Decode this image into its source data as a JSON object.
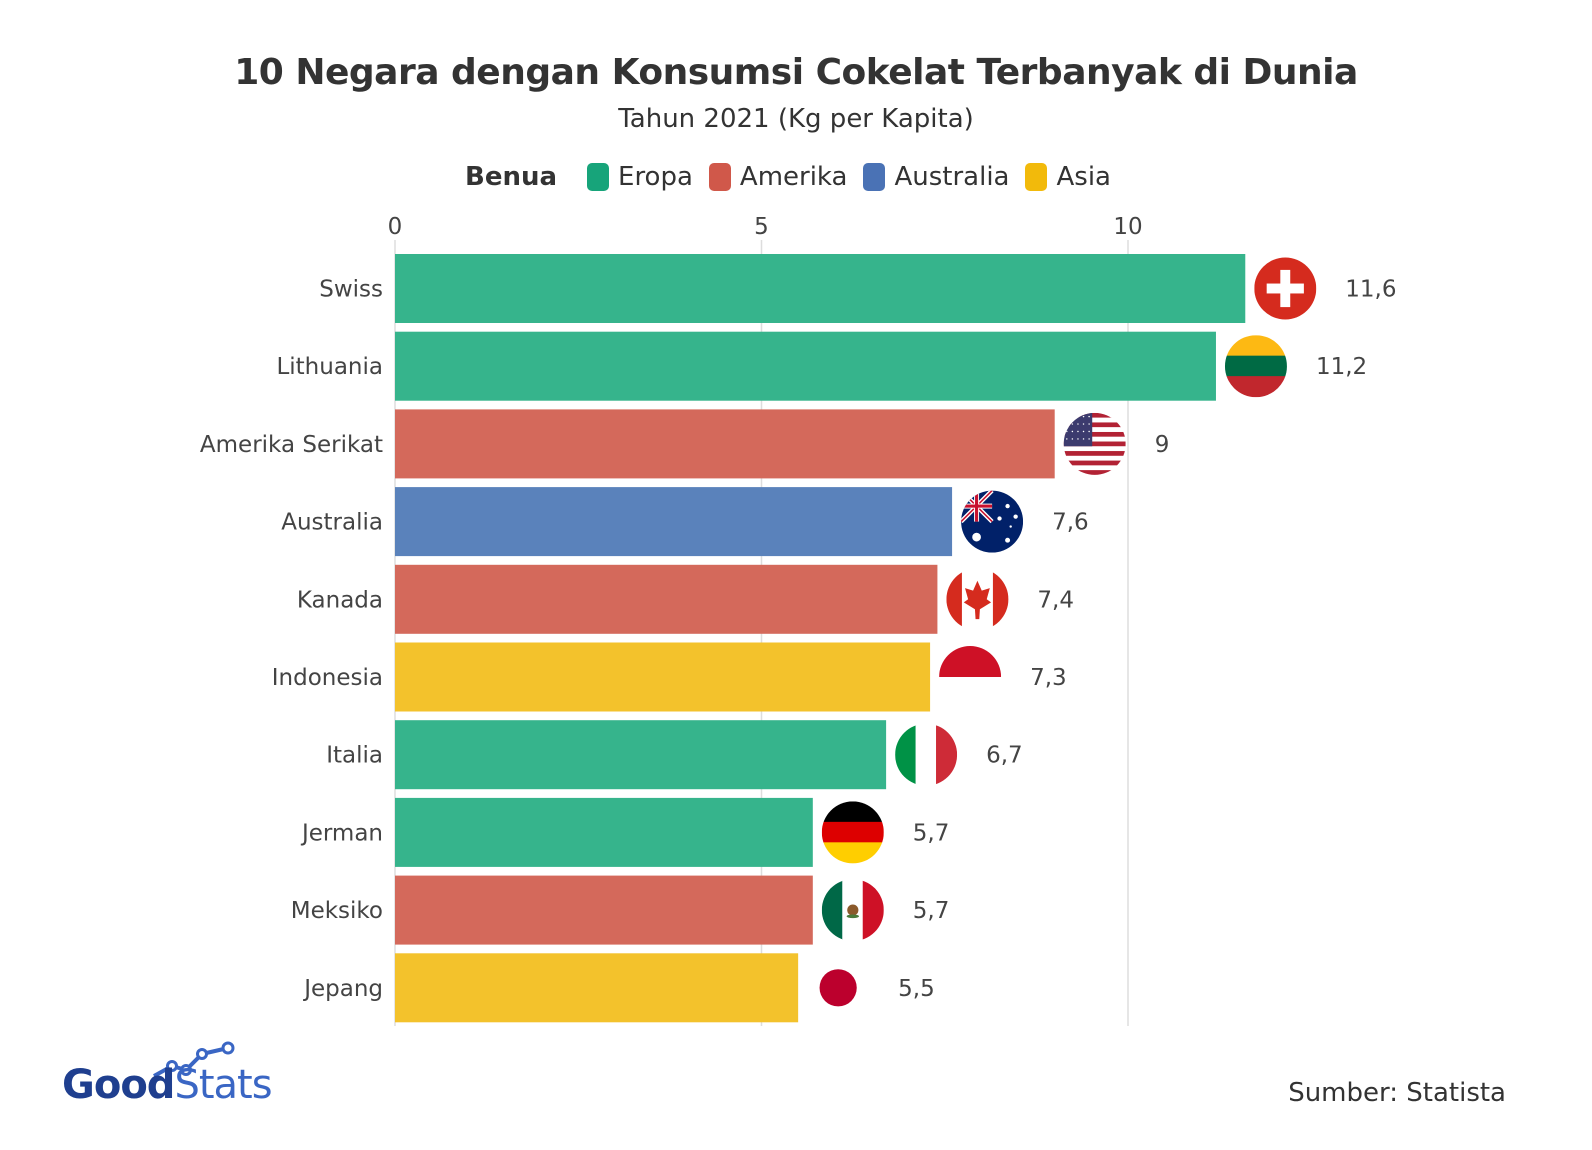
{
  "header": {
    "title": "10 Negara dengan Konsumsi Cokelat Terbanyak di Dunia",
    "subtitle": "Tahun 2021 (Kg per Kapita)"
  },
  "legend": {
    "title": "Benua",
    "items": [
      {
        "label": "Eropa",
        "color": "#17a47a"
      },
      {
        "label": "Amerika",
        "color": "#d0584a"
      },
      {
        "label": "Australia",
        "color": "#4a72b5"
      },
      {
        "label": "Asia",
        "color": "#f2ba0b"
      }
    ]
  },
  "chart_data": {
    "type": "bar",
    "orientation": "horizontal",
    "xlim": [
      0,
      12
    ],
    "xticks": [
      0,
      5,
      10
    ],
    "grid": true,
    "categories": [
      "Swiss",
      "Lithuania",
      "Amerika Serikat",
      "Australia",
      "Kanada",
      "Indonesia",
      "Italia",
      "Jerman",
      "Meksiko",
      "Jepang"
    ],
    "values": [
      11.6,
      11.2,
      9,
      7.6,
      7.4,
      7.3,
      6.7,
      5.7,
      5.7,
      5.5
    ],
    "value_labels": [
      "11,6",
      "11,2",
      "9",
      "7,6",
      "7,4",
      "7,3",
      "6,7",
      "5,7",
      "5,7",
      "5,5"
    ],
    "continents": [
      "Eropa",
      "Eropa",
      "Amerika",
      "Australia",
      "Amerika",
      "Asia",
      "Eropa",
      "Eropa",
      "Amerika",
      "Asia"
    ],
    "flags": [
      "switzerland-flag-icon",
      "lithuania-flag-icon",
      "usa-flag-icon",
      "australia-flag-icon",
      "canada-flag-icon",
      "indonesia-flag-icon",
      "italy-flag-icon",
      "germany-flag-icon",
      "mexico-flag-icon",
      "japan-flag-icon"
    ],
    "bar_colors": {
      "Eropa": "#36b48c",
      "Amerika": "#d4695b",
      "Australia": "#5a82bb",
      "Asia": "#f3c22c"
    }
  },
  "footer": {
    "logo_bold": "Good",
    "logo_light": "Stats",
    "source": "Sumber: Statista"
  }
}
